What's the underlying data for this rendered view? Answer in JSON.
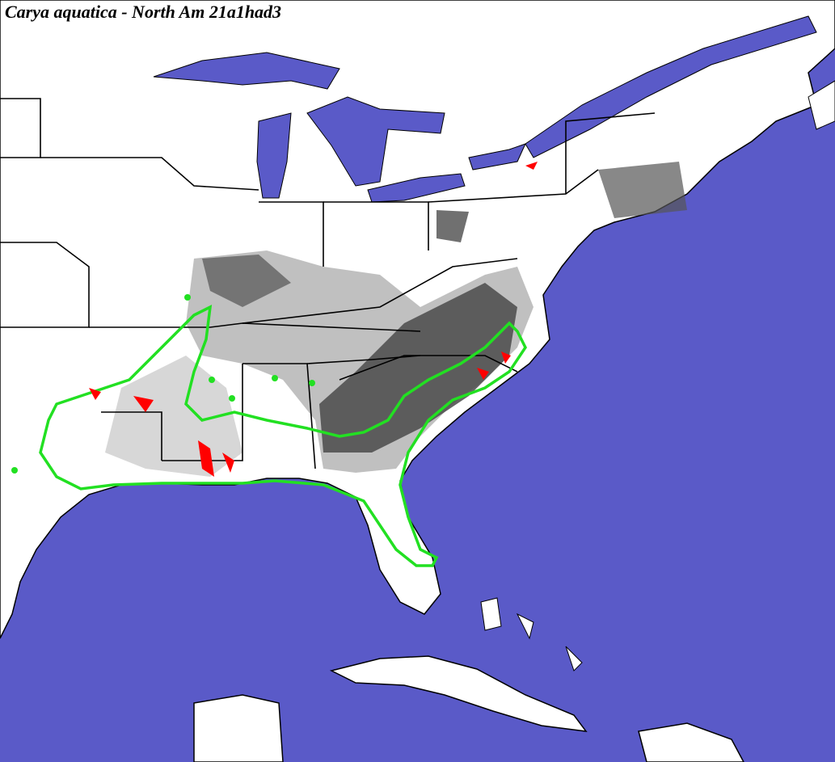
{
  "title": "Carya aquatica - North Am 21a1had3"
}
